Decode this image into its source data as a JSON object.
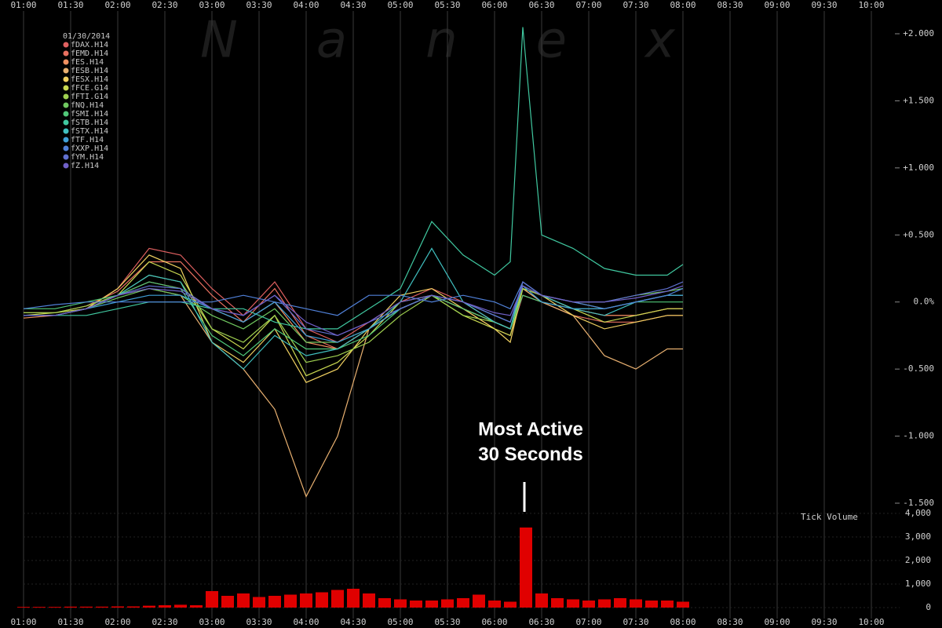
{
  "chart_data": [
    {
      "type": "line",
      "watermark": "Nanex",
      "date": "01/30/2014",
      "annotation": [
        "Most Active",
        "30 Seconds"
      ],
      "x": [
        60,
        80,
        100,
        120,
        140,
        160,
        180,
        200,
        220,
        240,
        260,
        280,
        300,
        320,
        340,
        360,
        370,
        378,
        390,
        410,
        430,
        450,
        470,
        480
      ],
      "xlim": [
        60,
        600
      ],
      "xticks": [
        {
          "value": 60,
          "label": "01:00"
        },
        {
          "value": 90,
          "label": "01:30"
        },
        {
          "value": 120,
          "label": "02:00"
        },
        {
          "value": 150,
          "label": "02:30"
        },
        {
          "value": 180,
          "label": "03:00"
        },
        {
          "value": 210,
          "label": "03:30"
        },
        {
          "value": 240,
          "label": "04:00"
        },
        {
          "value": 270,
          "label": "04:30"
        },
        {
          "value": 300,
          "label": "05:00"
        },
        {
          "value": 330,
          "label": "05:30"
        },
        {
          "value": 360,
          "label": "06:00"
        },
        {
          "value": 390,
          "label": "06:30"
        },
        {
          "value": 420,
          "label": "07:00"
        },
        {
          "value": 450,
          "label": "07:30"
        },
        {
          "value": 480,
          "label": "08:00"
        },
        {
          "value": 510,
          "label": "08:30"
        },
        {
          "value": 540,
          "label": "09:00"
        },
        {
          "value": 570,
          "label": "09:30"
        },
        {
          "value": 600,
          "label": "10:00"
        }
      ],
      "ylim": [
        -1.5,
        2.0
      ],
      "yticks": [
        {
          "value": 2.0,
          "label": "+2.000"
        },
        {
          "value": 1.5,
          "label": "+1.500"
        },
        {
          "value": 1.0,
          "label": "+1.000"
        },
        {
          "value": 0.5,
          "label": "+0.500"
        },
        {
          "value": 0,
          "label": "0.0%"
        },
        {
          "value": -0.5,
          "label": "-0.500"
        },
        {
          "value": -1.0,
          "label": "-1.000"
        },
        {
          "value": -1.5,
          "label": "-1.500"
        }
      ],
      "series": [
        {
          "name": "fDAX.H14",
          "color": "#e06060",
          "values": [
            -0.1,
            -0.1,
            -0.05,
            0.1,
            0.4,
            0.35,
            0.1,
            -0.1,
            0.15,
            -0.2,
            -0.3,
            -0.15,
            0.0,
            0.1,
            0.0,
            -0.15,
            -0.2,
            0.1,
            0.05,
            -0.05,
            -0.1,
            -0.1,
            -0.05,
            -0.05
          ]
        },
        {
          "name": "fEMD.H14",
          "color": "#e87060",
          "values": [
            -0.08,
            -0.08,
            -0.03,
            0.08,
            0.3,
            0.3,
            0.05,
            -0.15,
            0.1,
            -0.25,
            -0.35,
            -0.2,
            -0.05,
            0.05,
            -0.05,
            -0.2,
            -0.25,
            0.05,
            0.0,
            -0.1,
            -0.15,
            -0.15,
            -0.1,
            -0.1
          ]
        },
        {
          "name": "fES.H14",
          "color": "#f09060",
          "values": [
            -0.12,
            -0.1,
            -0.05,
            0.05,
            0.15,
            0.1,
            -0.05,
            -0.15,
            0.0,
            -0.3,
            -0.35,
            -0.2,
            -0.05,
            0.05,
            -0.05,
            -0.15,
            -0.2,
            0.1,
            0.0,
            -0.05,
            -0.1,
            -0.1,
            -0.05,
            -0.05
          ]
        },
        {
          "name": "fESB.H14",
          "color": "#e8b070",
          "values": [
            -0.1,
            -0.1,
            -0.05,
            0.05,
            0.1,
            0.05,
            -0.3,
            -0.5,
            -0.8,
            -1.45,
            -1.0,
            -0.2,
            -0.05,
            0.05,
            -0.05,
            -0.15,
            -0.2,
            0.1,
            0.0,
            -0.1,
            -0.4,
            -0.5,
            -0.35,
            -0.35
          ]
        },
        {
          "name": "fESX.H14",
          "color": "#f0d060",
          "values": [
            -0.1,
            -0.1,
            -0.05,
            0.1,
            0.35,
            0.25,
            -0.3,
            -0.45,
            -0.2,
            -0.6,
            -0.5,
            -0.2,
            0.05,
            0.1,
            -0.05,
            -0.2,
            -0.3,
            0.1,
            0.05,
            -0.1,
            -0.2,
            -0.15,
            -0.1,
            -0.1
          ]
        },
        {
          "name": "fFCE.G14",
          "color": "#c8d850",
          "values": [
            -0.1,
            -0.08,
            -0.05,
            0.05,
            0.3,
            0.2,
            -0.2,
            -0.35,
            -0.1,
            -0.55,
            -0.45,
            -0.25,
            0.0,
            0.05,
            -0.1,
            -0.2,
            -0.25,
            0.1,
            0.05,
            -0.05,
            -0.15,
            -0.1,
            -0.05,
            -0.05
          ]
        },
        {
          "name": "fFTI.G14",
          "color": "#a0d050",
          "values": [
            -0.08,
            -0.08,
            -0.03,
            0.05,
            0.2,
            0.15,
            -0.2,
            -0.3,
            -0.1,
            -0.45,
            -0.4,
            -0.3,
            -0.1,
            0.05,
            -0.1,
            -0.15,
            -0.2,
            0.1,
            0.05,
            0.0,
            -0.05,
            0.0,
            0.05,
            0.05
          ]
        },
        {
          "name": "fNQ.H14",
          "color": "#70c860",
          "values": [
            -0.1,
            -0.1,
            -0.05,
            0.03,
            0.1,
            0.05,
            -0.1,
            -0.2,
            -0.05,
            -0.3,
            -0.3,
            -0.2,
            -0.05,
            0.05,
            0.0,
            -0.1,
            -0.15,
            0.12,
            0.05,
            0.0,
            0.0,
            0.05,
            0.08,
            0.1
          ]
        },
        {
          "name": "fSMI.H14",
          "color": "#50c878",
          "values": [
            -0.05,
            -0.05,
            0.0,
            0.05,
            0.15,
            0.1,
            -0.25,
            -0.4,
            -0.2,
            -0.35,
            -0.35,
            -0.25,
            -0.05,
            0.05,
            -0.05,
            -0.15,
            -0.2,
            0.05,
            0.0,
            -0.05,
            -0.05,
            0.0,
            0.0,
            0.0
          ]
        },
        {
          "name": "fSTB.H14",
          "color": "#40c8a0",
          "values": [
            -0.1,
            -0.1,
            -0.1,
            -0.05,
            0.0,
            0.0,
            -0.05,
            -0.05,
            -0.15,
            -0.2,
            -0.2,
            -0.05,
            0.1,
            0.6,
            0.35,
            0.2,
            0.3,
            2.05,
            0.5,
            0.4,
            0.25,
            0.2,
            0.2,
            0.28
          ]
        },
        {
          "name": "fSTX.H14",
          "color": "#40c0c0",
          "values": [
            -0.1,
            -0.1,
            -0.05,
            0.05,
            0.2,
            0.15,
            -0.3,
            -0.5,
            -0.25,
            -0.4,
            -0.35,
            -0.2,
            0.0,
            0.4,
            0.0,
            -0.15,
            -0.2,
            0.15,
            0.05,
            -0.05,
            -0.1,
            0.0,
            0.05,
            0.05
          ]
        },
        {
          "name": "fTF.H14",
          "color": "#40a0d8",
          "values": [
            -0.1,
            -0.1,
            -0.05,
            0.0,
            0.05,
            0.05,
            -0.05,
            -0.15,
            0.0,
            -0.25,
            -0.3,
            -0.2,
            -0.05,
            0.05,
            0.0,
            -0.1,
            -0.15,
            0.12,
            0.0,
            -0.05,
            -0.05,
            0.0,
            0.05,
            0.05
          ]
        },
        {
          "name": "fXXP.H14",
          "color": "#5080d8",
          "values": [
            -0.05,
            -0.02,
            0.0,
            0.0,
            0.0,
            0.0,
            0.0,
            0.05,
            0.0,
            -0.05,
            -0.1,
            0.05,
            0.05,
            0.0,
            0.05,
            0.0,
            -0.05,
            0.15,
            0.05,
            0.0,
            -0.05,
            0.0,
            0.05,
            0.1
          ]
        },
        {
          "name": "fYM.H14",
          "color": "#6070d0",
          "values": [
            -0.1,
            -0.1,
            -0.05,
            0.05,
            0.12,
            0.1,
            -0.05,
            -0.1,
            0.05,
            -0.2,
            -0.25,
            -0.15,
            -0.05,
            0.05,
            0.0,
            -0.1,
            -0.15,
            0.15,
            0.05,
            0.0,
            0.0,
            0.05,
            0.1,
            0.15
          ]
        },
        {
          "name": "fZ.H14",
          "color": "#7060c8",
          "values": [
            -0.1,
            -0.1,
            -0.05,
            0.05,
            0.1,
            0.08,
            -0.05,
            -0.1,
            0.05,
            -0.15,
            -0.25,
            -0.15,
            0.0,
            0.05,
            0.0,
            -0.08,
            -0.1,
            0.12,
            0.05,
            0.0,
            0.0,
            0.03,
            0.08,
            0.12
          ]
        }
      ]
    },
    {
      "type": "bar",
      "title": "Tick Volume",
      "color": "#e00000",
      "x": [
        60,
        70,
        80,
        90,
        100,
        110,
        120,
        130,
        140,
        150,
        160,
        170,
        180,
        190,
        200,
        210,
        220,
        230,
        240,
        250,
        260,
        270,
        280,
        290,
        300,
        310,
        320,
        330,
        340,
        350,
        360,
        370,
        380,
        390,
        400,
        410,
        420,
        430,
        440,
        450,
        460,
        470,
        480
      ],
      "values": [
        30,
        30,
        30,
        40,
        40,
        40,
        50,
        50,
        80,
        100,
        120,
        100,
        700,
        500,
        600,
        450,
        500,
        550,
        600,
        650,
        750,
        800,
        600,
        400,
        350,
        300,
        300,
        350,
        400,
        550,
        300,
        250,
        3400,
        600,
        400,
        350,
        300,
        350,
        400,
        350,
        300,
        300,
        250
      ],
      "xlim": [
        60,
        600
      ],
      "xticks": [
        {
          "value": 60,
          "label": "01:00"
        },
        {
          "value": 90,
          "label": "01:30"
        },
        {
          "value": 120,
          "label": "02:00"
        },
        {
          "value": 150,
          "label": "02:30"
        },
        {
          "value": 180,
          "label": "03:00"
        },
        {
          "value": 210,
          "label": "03:30"
        },
        {
          "value": 240,
          "label": "04:00"
        },
        {
          "value": 270,
          "label": "04:30"
        },
        {
          "value": 300,
          "label": "05:00"
        },
        {
          "value": 330,
          "label": "05:30"
        },
        {
          "value": 360,
          "label": "06:00"
        },
        {
          "value": 390,
          "label": "06:30"
        },
        {
          "value": 420,
          "label": "07:00"
        },
        {
          "value": 450,
          "label": "07:30"
        },
        {
          "value": 480,
          "label": "08:00"
        },
        {
          "value": 510,
          "label": "08:30"
        },
        {
          "value": 540,
          "label": "09:00"
        },
        {
          "value": 570,
          "label": "09:30"
        },
        {
          "value": 600,
          "label": "10:00"
        }
      ],
      "ylim": [
        0,
        4000
      ],
      "yticks": [
        {
          "value": 4000,
          "label": "4,000"
        },
        {
          "value": 3000,
          "label": "3,000"
        },
        {
          "value": 2000,
          "label": "2,000"
        },
        {
          "value": 1000,
          "label": "1,000"
        },
        0
      ]
    }
  ]
}
